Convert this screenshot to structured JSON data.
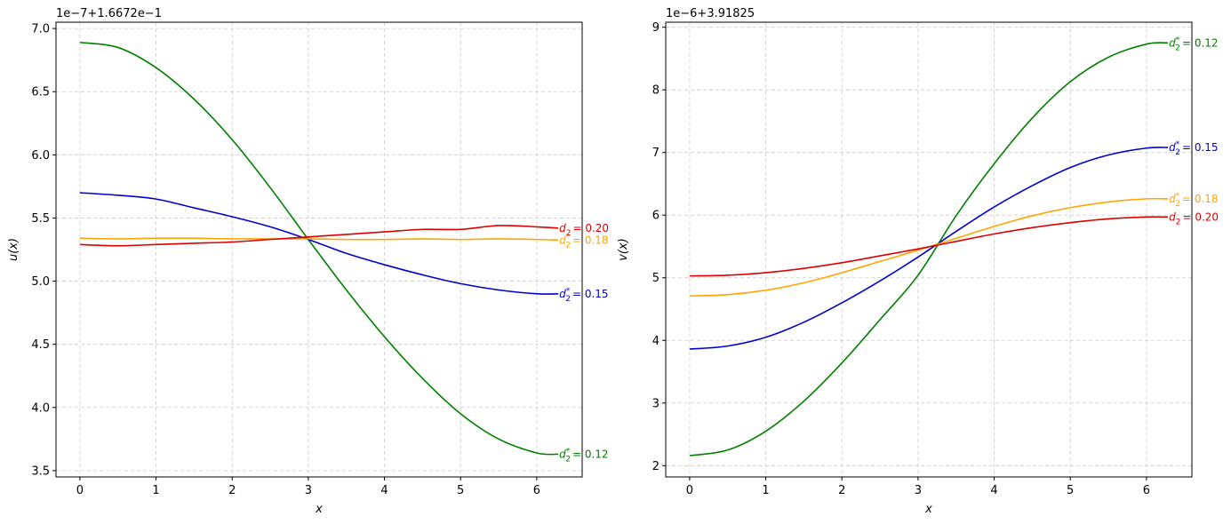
{
  "chart_data": [
    {
      "type": "line",
      "xlabel": "x",
      "ylabel": "u(x)",
      "offset_text": "1e−7+1.6672e−1",
      "xlim": [
        -0.314,
        6.597
      ],
      "ylim": [
        3.45,
        7.05
      ],
      "x_ticks": [
        0,
        1,
        2,
        3,
        4,
        5,
        6
      ],
      "y_ticks": [
        3.5,
        4.0,
        4.5,
        5.0,
        5.5,
        6.0,
        6.5,
        7.0
      ],
      "x_tick_labels": [
        "0",
        "1",
        "2",
        "3",
        "4",
        "5",
        "6"
      ],
      "y_tick_labels": [
        "3.5",
        "4.0",
        "4.5",
        "5.0",
        "5.5",
        "6.0",
        "6.5",
        "7.0"
      ],
      "grid": true,
      "series": [
        {
          "label_main": "d",
          "label_sub": "2",
          "label_star": true,
          "label_value": "= 0.12",
          "color": "#008000",
          "x": [
            0,
            0.5,
            1.0,
            1.5,
            2.0,
            2.5,
            3.0,
            3.5,
            4.0,
            4.5,
            5.0,
            5.5,
            6.0,
            6.283
          ],
          "y": [
            6.89,
            6.85,
            6.69,
            6.44,
            6.12,
            5.74,
            5.33,
            4.93,
            4.56,
            4.23,
            3.95,
            3.75,
            3.64,
            3.63
          ]
        },
        {
          "label_main": "d",
          "label_sub": "2",
          "label_star": true,
          "label_value": "= 0.15",
          "color": "#0000cc",
          "x": [
            0,
            0.5,
            1.0,
            1.5,
            2.0,
            2.5,
            3.0,
            3.5,
            4.0,
            4.5,
            5.0,
            5.5,
            6.0,
            6.283
          ],
          "y": [
            5.7,
            5.68,
            5.65,
            5.58,
            5.51,
            5.43,
            5.33,
            5.22,
            5.13,
            5.05,
            4.98,
            4.93,
            4.9,
            4.9
          ]
        },
        {
          "label_main": "d",
          "label_sub": "2",
          "label_star": true,
          "label_value": "= 0.18",
          "color": "#ffa500",
          "x": [
            0,
            0.5,
            1.0,
            1.5,
            2.0,
            2.5,
            3.0,
            3.5,
            4.0,
            4.5,
            5.0,
            5.5,
            6.0,
            6.283
          ],
          "y": [
            5.34,
            5.335,
            5.34,
            5.34,
            5.335,
            5.335,
            5.335,
            5.33,
            5.33,
            5.335,
            5.33,
            5.335,
            5.33,
            5.325
          ]
        },
        {
          "label_main": "d",
          "label_sub": "2",
          "label_star": false,
          "label_value": "= 0.20",
          "color": "#dd0000",
          "x": [
            0,
            0.5,
            1.0,
            1.5,
            2.0,
            2.5,
            3.0,
            3.5,
            4.0,
            4.5,
            5.0,
            5.5,
            6.0,
            6.283
          ],
          "y": [
            5.29,
            5.28,
            5.29,
            5.3,
            5.31,
            5.33,
            5.35,
            5.37,
            5.39,
            5.41,
            5.41,
            5.44,
            5.43,
            5.42
          ]
        }
      ]
    },
    {
      "type": "line",
      "xlabel": "x",
      "ylabel": "v(x)",
      "offset_text": "1e−6+3.91825",
      "xlim": [
        -0.314,
        6.597
      ],
      "ylim": [
        1.82,
        9.08
      ],
      "x_ticks": [
        0,
        1,
        2,
        3,
        4,
        5,
        6
      ],
      "y_ticks": [
        2,
        3,
        4,
        5,
        6,
        7,
        8,
        9
      ],
      "x_tick_labels": [
        "0",
        "1",
        "2",
        "3",
        "4",
        "5",
        "6"
      ],
      "y_tick_labels": [
        "2",
        "3",
        "4",
        "5",
        "6",
        "7",
        "8",
        "9"
      ],
      "grid": true,
      "series": [
        {
          "label_main": "d",
          "label_sub": "2",
          "label_star": true,
          "label_value": "= 0.12",
          "color": "#008000",
          "x": [
            0,
            0.5,
            1.0,
            1.5,
            2.0,
            2.5,
            3.0,
            3.5,
            4.0,
            4.5,
            5.0,
            5.5,
            6.0,
            6.283
          ],
          "y": [
            2.16,
            2.25,
            2.55,
            3.03,
            3.64,
            4.33,
            5.04,
            5.99,
            6.82,
            7.55,
            8.13,
            8.52,
            8.73,
            8.75
          ]
        },
        {
          "label_main": "d",
          "label_sub": "2",
          "label_star": true,
          "label_value": "= 0.15",
          "color": "#0000cc",
          "x": [
            0,
            0.5,
            1.0,
            1.5,
            2.0,
            2.5,
            3.0,
            3.5,
            4.0,
            4.5,
            5.0,
            5.5,
            6.0,
            6.283
          ],
          "y": [
            3.86,
            3.91,
            4.05,
            4.29,
            4.6,
            4.95,
            5.33,
            5.74,
            6.13,
            6.47,
            6.76,
            6.96,
            7.07,
            7.08
          ]
        },
        {
          "label_main": "d",
          "label_sub": "2",
          "label_star": true,
          "label_value": "= 0.18",
          "color": "#ffa500",
          "x": [
            0,
            0.5,
            1.0,
            1.5,
            2.0,
            2.5,
            3.0,
            3.5,
            4.0,
            4.5,
            5.0,
            5.5,
            6.0,
            6.283
          ],
          "y": [
            4.71,
            4.73,
            4.8,
            4.92,
            5.08,
            5.26,
            5.44,
            5.63,
            5.82,
            5.99,
            6.12,
            6.21,
            6.26,
            6.26
          ]
        },
        {
          "label_main": "d",
          "label_sub": "2",
          "label_star": false,
          "label_value": "= 0.20",
          "color": "#dd0000",
          "x": [
            0,
            0.5,
            1.0,
            1.5,
            2.0,
            2.5,
            3.0,
            3.5,
            4.0,
            4.5,
            5.0,
            5.5,
            6.0,
            6.283
          ],
          "y": [
            5.03,
            5.04,
            5.08,
            5.15,
            5.24,
            5.35,
            5.46,
            5.58,
            5.7,
            5.8,
            5.88,
            5.94,
            5.97,
            5.97
          ]
        }
      ]
    }
  ]
}
